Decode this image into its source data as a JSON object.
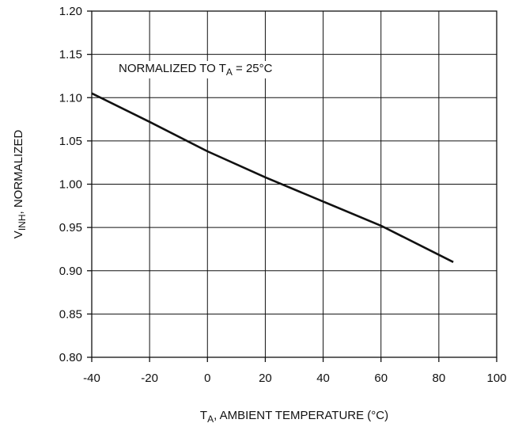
{
  "chart_data": {
    "type": "line",
    "xlabel": {
      "main": "T",
      "sub": "A",
      "rest": ", AMBIENT TEMPERATURE (°C)"
    },
    "ylabel": {
      "main": "V",
      "sub": "INH",
      "rest": ", NORMALIZED"
    },
    "annotation": {
      "main": "NORMALIZED TO T",
      "sub": "A",
      "rest": " = 25°C"
    },
    "xlim": [
      -40,
      100
    ],
    "ylim": [
      0.8,
      1.2
    ],
    "x_ticks": [
      "-40",
      "-20",
      "0",
      "20",
      "40",
      "60",
      "80",
      "100"
    ],
    "y_ticks": [
      "0.80",
      "0.85",
      "0.90",
      "0.95",
      "1.00",
      "1.05",
      "1.10",
      "1.15",
      "1.20"
    ],
    "grid": true,
    "series": [
      {
        "x": [
          -40,
          -20,
          0,
          20,
          40,
          60,
          85
        ],
        "y": [
          1.105,
          1.072,
          1.038,
          1.008,
          0.98,
          0.952,
          0.91
        ]
      }
    ]
  }
}
